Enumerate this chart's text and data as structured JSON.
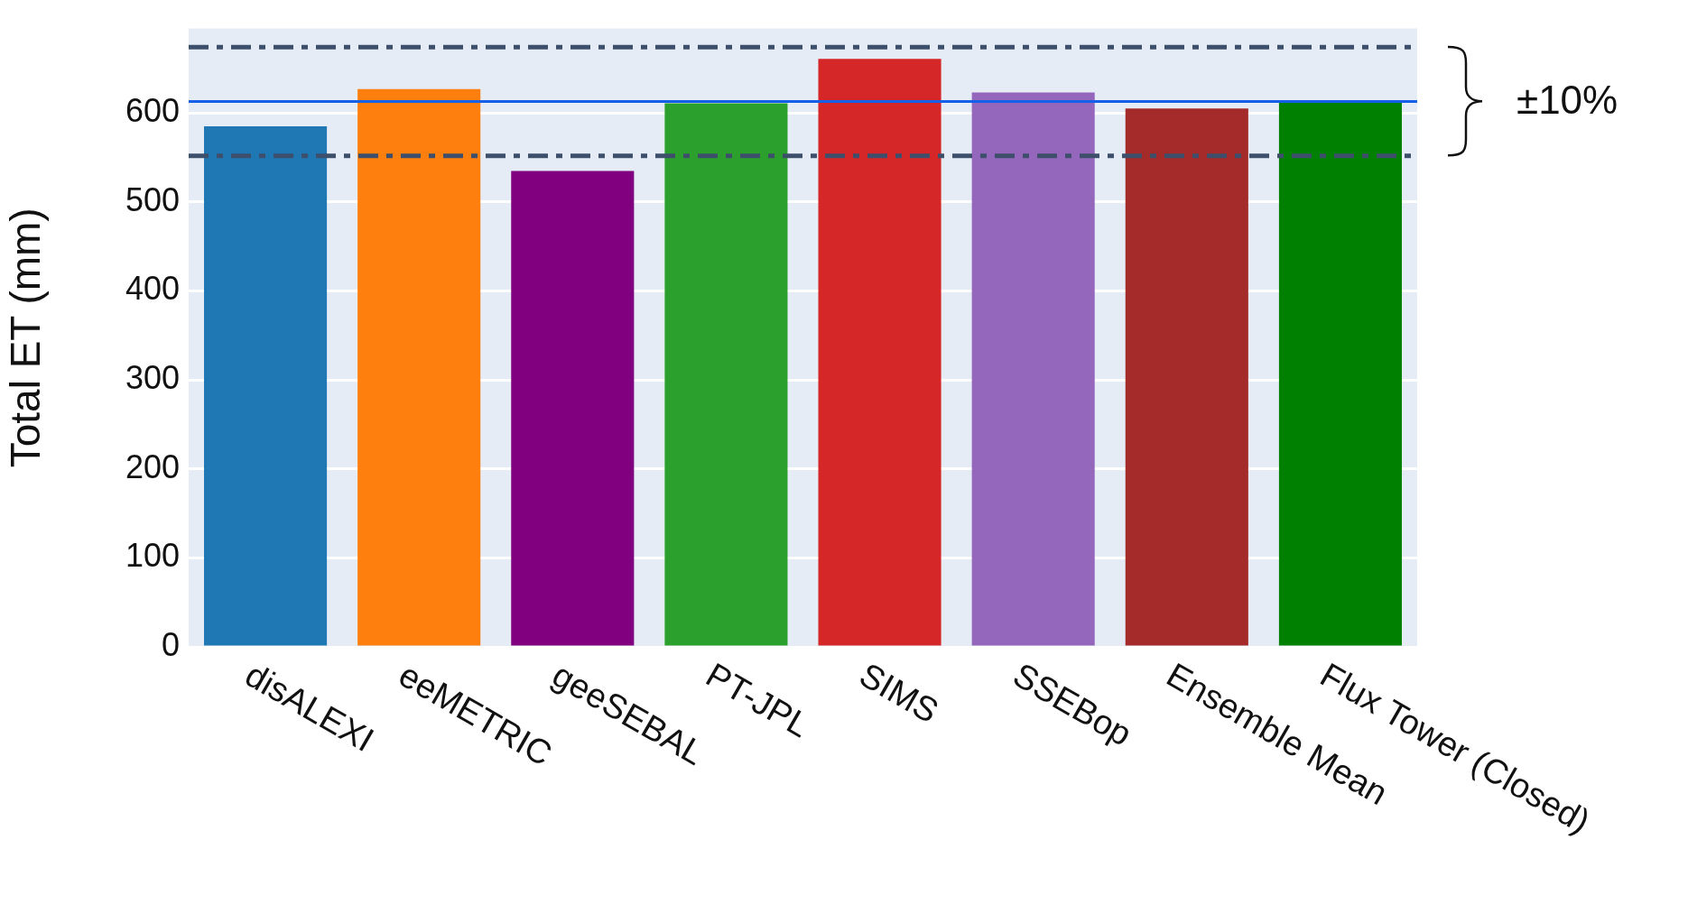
{
  "chart_data": {
    "type": "bar",
    "ylabel": "Total ET (mm)",
    "categories": [
      "disALEXI",
      "eeMETRIC",
      "geeSEBAL",
      "PT-JPL",
      "SIMS",
      "SSEBop",
      "Ensemble Mean",
      "Flux Tower (Closed)"
    ],
    "values": [
      585,
      627,
      535,
      611,
      661,
      623,
      605,
      613
    ],
    "colors": [
      "#1f77b4",
      "#ff7f0e",
      "#800080",
      "#2ca02c",
      "#d62728",
      "#9467bd",
      "#a52a2a",
      "#008000"
    ],
    "ylim": [
      0,
      695
    ],
    "yticks": [
      0,
      100,
      200,
      300,
      400,
      500,
      600
    ],
    "grid": "y",
    "ref_lines": [
      {
        "axis": "y",
        "value": 613,
        "color": "#1560e8",
        "line_style": "solid"
      },
      {
        "axis": "y",
        "value": 674,
        "color": "#3d4f6b",
        "line_style": "dashed"
      },
      {
        "axis": "y",
        "value": 552,
        "color": "#3d4f6b",
        "line_style": "dashed"
      }
    ],
    "annotations": [
      "±10%"
    ]
  }
}
